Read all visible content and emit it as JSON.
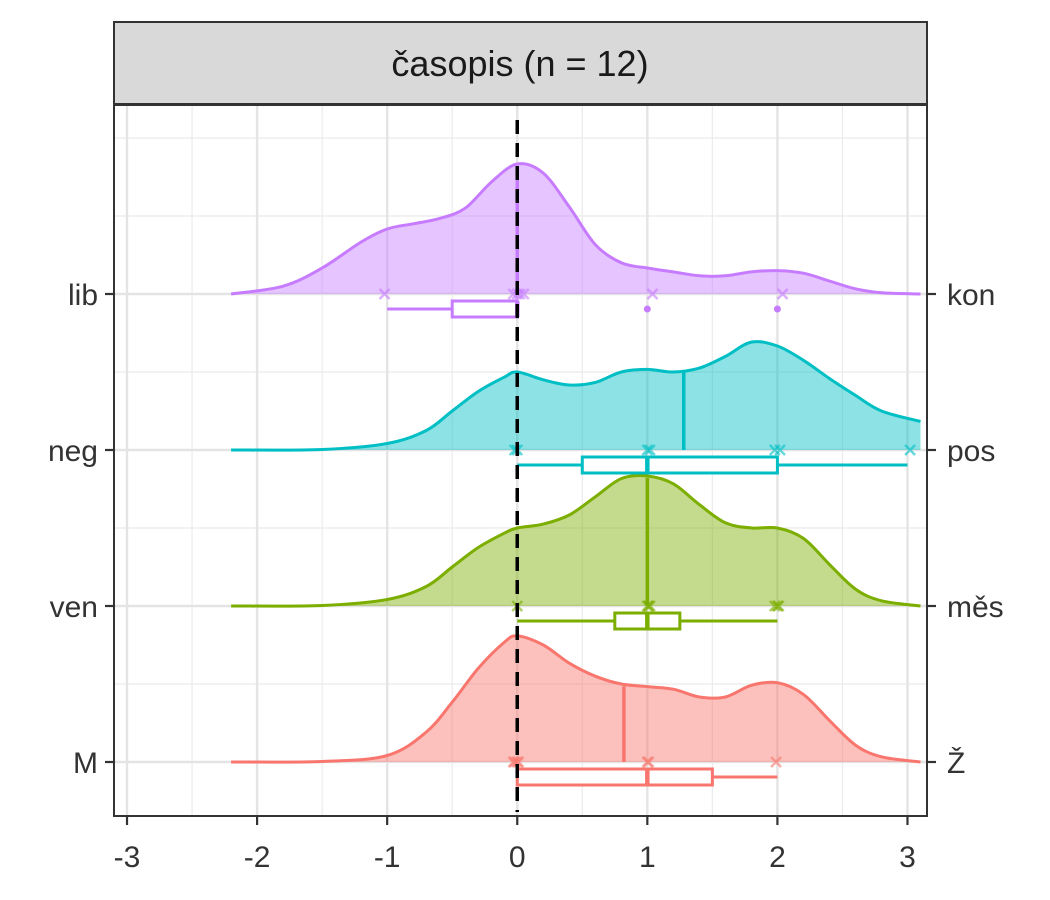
{
  "chart_data": {
    "type": "ridgeline",
    "panel_title": "časopis (n = 12)",
    "xlim": [
      -3.1,
      3.15
    ],
    "x_ticks": [
      -3,
      -2,
      -1,
      0,
      1,
      2,
      3
    ],
    "x_tick_labels": [
      "-3",
      "-2",
      "-1",
      "0",
      "1",
      "2",
      "3"
    ],
    "reference_line_x": 0,
    "grid": true,
    "series": [
      {
        "left_label": "M",
        "right_label": "Ž",
        "color": "#F8766D",
        "density_x": [
          -2.2,
          -1.5,
          -1.0,
          -0.7,
          -0.5,
          -0.3,
          -0.1,
          0.0,
          0.2,
          0.4,
          0.6,
          0.8,
          1.0,
          1.2,
          1.4,
          1.6,
          1.8,
          2.0,
          2.2,
          2.4,
          2.6,
          2.8,
          3.1
        ],
        "density_y": [
          0.0,
          0.004,
          0.05,
          0.23,
          0.46,
          0.72,
          0.92,
          0.97,
          0.9,
          0.76,
          0.66,
          0.6,
          0.58,
          0.56,
          0.5,
          0.5,
          0.59,
          0.61,
          0.52,
          0.32,
          0.13,
          0.04,
          0.0
        ],
        "median_line_x": 0.82,
        "points": [
          -0.03,
          -0.02,
          0.0,
          0.01,
          1.0,
          1.01,
          1.99
        ],
        "box": {
          "lower_whisker": 0,
          "q1": 0,
          "median": 1,
          "q3": 1.5,
          "upper_whisker": 2
        },
        "outliers": []
      },
      {
        "left_label": "ven",
        "right_label": "měs",
        "color": "#7CAE00",
        "density_x": [
          -2.2,
          -1.5,
          -1.0,
          -0.7,
          -0.5,
          -0.3,
          -0.1,
          0.0,
          0.2,
          0.4,
          0.6,
          0.8,
          1.0,
          1.2,
          1.4,
          1.6,
          1.8,
          2.0,
          2.2,
          2.4,
          2.6,
          2.8,
          3.1
        ],
        "density_y": [
          0.0,
          0.004,
          0.05,
          0.15,
          0.3,
          0.45,
          0.56,
          0.6,
          0.63,
          0.7,
          0.84,
          0.98,
          1.0,
          0.94,
          0.78,
          0.64,
          0.6,
          0.6,
          0.52,
          0.32,
          0.13,
          0.04,
          0.0
        ],
        "median_line_x": 1.0,
        "points": [
          0.0,
          1.0,
          1.01,
          1.02,
          1.98,
          2.0,
          2.01
        ],
        "box": {
          "lower_whisker": 0,
          "q1": 0.75,
          "median": 1,
          "q3": 1.25,
          "upper_whisker": 2
        },
        "outliers": []
      },
      {
        "left_label": "neg",
        "right_label": "pos",
        "color": "#00BFC4",
        "density_x": [
          -2.2,
          -1.5,
          -1.0,
          -0.7,
          -0.5,
          -0.3,
          -0.1,
          0.0,
          0.2,
          0.4,
          0.6,
          0.8,
          1.0,
          1.2,
          1.4,
          1.6,
          1.8,
          2.0,
          2.2,
          2.4,
          2.6,
          2.8,
          3.1
        ],
        "density_y": [
          0.0,
          0.004,
          0.05,
          0.15,
          0.3,
          0.45,
          0.56,
          0.6,
          0.54,
          0.5,
          0.52,
          0.6,
          0.62,
          0.6,
          0.63,
          0.72,
          0.83,
          0.8,
          0.69,
          0.55,
          0.42,
          0.3,
          0.22
        ],
        "median_line_x": 1.28,
        "points": [
          -0.02,
          0.0,
          1.0,
          1.02,
          1.98,
          2.02,
          3.02
        ],
        "box": {
          "lower_whisker": 0,
          "q1": 0.5,
          "median": 1,
          "q3": 2,
          "upper_whisker": 3
        },
        "outliers": []
      },
      {
        "left_label": "lib",
        "right_label": "kon",
        "color": "#C77CFF",
        "density_x": [
          -2.2,
          -1.8,
          -1.5,
          -1.2,
          -1.0,
          -0.8,
          -0.6,
          -0.4,
          -0.2,
          0.0,
          0.2,
          0.4,
          0.6,
          0.8,
          1.0,
          1.2,
          1.4,
          1.6,
          1.8,
          2.0,
          2.2,
          2.4,
          2.6,
          2.8,
          3.1
        ],
        "density_y": [
          0.0,
          0.06,
          0.2,
          0.4,
          0.5,
          0.54,
          0.58,
          0.66,
          0.86,
          1.0,
          0.93,
          0.67,
          0.38,
          0.24,
          0.2,
          0.17,
          0.14,
          0.14,
          0.17,
          0.18,
          0.16,
          0.1,
          0.04,
          0.01,
          0.0
        ],
        "median_line_x": 0.0,
        "points": [
          -1.02,
          -0.03,
          0.0,
          0.02,
          0.05,
          1.04,
          2.04
        ],
        "box": {
          "lower_whisker": -1,
          "q1": -0.5,
          "median": 0,
          "q3": 0,
          "upper_whisker": 0
        },
        "outliers": [
          1,
          2
        ]
      }
    ]
  }
}
